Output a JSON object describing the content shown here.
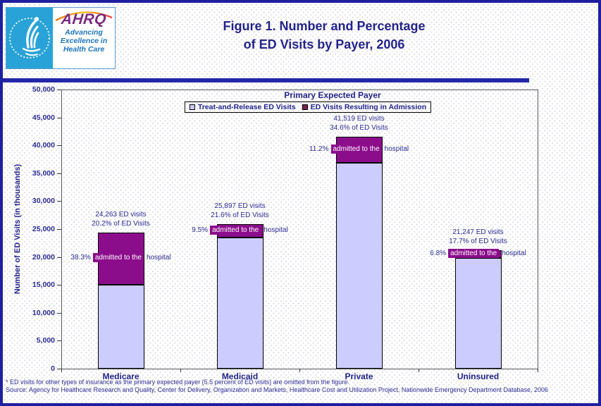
{
  "page": {
    "title_line1": "Figure 1. Number and Percentage",
    "title_line2": "of ED Visits by Payer, 2006"
  },
  "logo": {
    "ahrq_acronym": "AHRQ",
    "tagline_line1": "Advancing",
    "tagline_line2": "Excellence in",
    "tagline_line3": "Health Care"
  },
  "footnotes": {
    "note": "* ED visits for other types of insurance as the primary expected payer (5.5 percent of ED visits) are omitted from the figure.",
    "source": "Source: Agency for Healthcare Research and Quality, Center for Delivery, Organization and Markets, Healthcare Cost and Utilization Project, Nationwide Emergency Department Database, 2006"
  },
  "colors": {
    "accent_navy": "#23238B",
    "chart_text_navy": "#2B2B93",
    "frame_navy": "#1F1FA0",
    "divider_navy": "#2328A8",
    "treat_release_fill": "#CCCCFF",
    "admission_fill": "#8C0D8C",
    "legend_admission_swatch": "#7A2150",
    "hhs_teal": "#29A3D7",
    "ahrq_purple": "#7B2982",
    "tagline_blue": "#1C75BB",
    "bar_border": "#000000"
  },
  "chart_data": {
    "type": "bar",
    "stacked": true,
    "title": "Primary Expected Payer",
    "ylabel": "Number of ED Visits (in thousands)",
    "ylim": [
      0,
      50000
    ],
    "ytick_step": 5000,
    "grid": false,
    "legend_position": "top-inside",
    "categories": [
      "Medicare",
      "Medicaid",
      "Private",
      "Uninsured"
    ],
    "series": [
      {
        "name": "Treat-and-Release ED Visits",
        "color": "#CCCCFF",
        "values": [
          14970,
          23437,
          36869,
          19802
        ]
      },
      {
        "name": "ED Visits Resulting in Admission",
        "color": "#8C0D8C",
        "values": [
          9293,
          2460,
          4650,
          1445
        ]
      }
    ],
    "legend_marker_colors": [
      "#CCCCFF",
      "#7A2150"
    ],
    "totals": [
      24263,
      25897,
      41519,
      21247
    ],
    "total_pct_of_all_visits": [
      20.2,
      21.6,
      34.6,
      17.7
    ],
    "admitted_pct": [
      38.3,
      9.5,
      11.2,
      6.8
    ],
    "annotations": [
      {
        "total_label": "24,263 ED visits",
        "pct_label": "20.2% of ED Visits",
        "admit_pct": "38.3%",
        "admit_mid": "admitted to the",
        "admit_end": "hospital"
      },
      {
        "total_label": "25,897 ED visits",
        "pct_label": "21.6% of ED Visits",
        "admit_pct": "9.5%",
        "admit_mid": "admitted to the",
        "admit_end": "hospital"
      },
      {
        "total_label": "41,519 ED visits",
        "pct_label": "34.6% of ED Visits",
        "admit_pct": "11.2%",
        "admit_mid": "admitted to the",
        "admit_end": "hospital"
      },
      {
        "total_label": "21,247 ED visits",
        "pct_label": "17.7% of ED Visits",
        "admit_pct": "6.8%",
        "admit_mid": "admitted to the",
        "admit_end": "hospital"
      }
    ]
  }
}
